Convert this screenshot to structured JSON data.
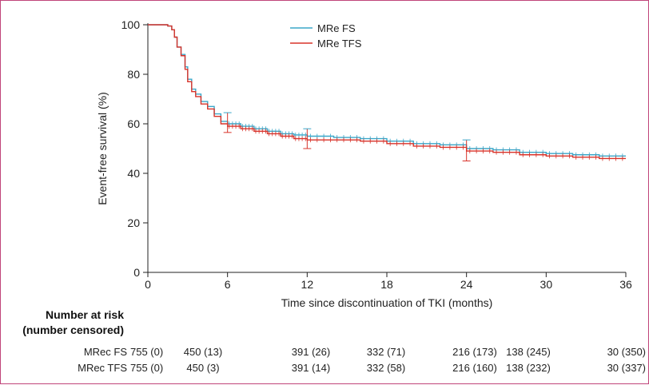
{
  "chart_data": {
    "type": "line",
    "title": "",
    "xlabel": "Time since discontinuation  of TKI (months)",
    "ylabel": "Event-free survival (%)",
    "xlim": [
      0,
      36
    ],
    "ylim": [
      0,
      100
    ],
    "x_ticks": [
      0,
      6,
      12,
      18,
      24,
      30,
      36
    ],
    "y_ticks": [
      0,
      20,
      40,
      60,
      80,
      100
    ],
    "grid": false,
    "legend_position": "top-center",
    "series": [
      {
        "name": "MRe FS",
        "color": "#3aa7c9",
        "x": [
          0,
          1.5,
          1.8,
          2.0,
          2.2,
          2.5,
          2.8,
          3.0,
          3.3,
          3.6,
          4.0,
          4.5,
          5.0,
          5.5,
          6.0,
          7.0,
          8.0,
          9.0,
          10.0,
          11.0,
          12.0,
          14.0,
          16.0,
          18.0,
          20.0,
          22.0,
          24.0,
          26.0,
          28.0,
          30.0,
          32.0,
          34.0,
          36.0
        ],
        "y": [
          100,
          99.5,
          98,
          95,
          91,
          88,
          83,
          78,
          74,
          72,
          69,
          67,
          64,
          61,
          60,
          59,
          58,
          57,
          56,
          55.5,
          55,
          54.5,
          54,
          53,
          52,
          51.5,
          50,
          49.5,
          48.5,
          48,
          47.5,
          47,
          47
        ]
      },
      {
        "name": "MRe TFS",
        "color": "#d8332a",
        "x": [
          0,
          1.5,
          1.8,
          2.0,
          2.2,
          2.5,
          2.8,
          3.0,
          3.3,
          3.6,
          4.0,
          4.5,
          5.0,
          5.5,
          6.0,
          7.0,
          8.0,
          9.0,
          10.0,
          11.0,
          12.0,
          14.0,
          16.0,
          18.0,
          20.0,
          22.0,
          24.0,
          26.0,
          28.0,
          30.0,
          32.0,
          34.0,
          36.0
        ],
        "y": [
          100,
          99.5,
          98,
          95,
          91,
          87.5,
          82,
          77,
          73,
          71,
          68,
          66,
          63,
          60,
          59,
          58,
          57,
          56,
          55,
          54,
          53.5,
          53.5,
          53,
          52,
          51,
          50.5,
          49,
          48.5,
          47.5,
          47,
          46.5,
          46,
          46
        ]
      }
    ],
    "error_bars": [
      {
        "x": 6,
        "low": 56.5,
        "high": 64.5
      },
      {
        "x": 12,
        "low": 50,
        "high": 58
      },
      {
        "x": 24,
        "low": 45,
        "high": 53.5
      }
    ]
  },
  "risk_table": {
    "header_line1": "Number at risk",
    "header_line2": "(number censored)",
    "rows": [
      {
        "label": "MRec FS",
        "values": [
          "755 (0)",
          "450 (13)",
          "391 (26)",
          "332 (71)",
          "216 (173)",
          "138 (245)",
          "30 (350)"
        ]
      },
      {
        "label": "MRec TFS",
        "values": [
          "755 (0)",
          "450 (3)",
          "391 (14)",
          "332 (58)",
          "216 (160)",
          "138 (232)",
          "30 (337)"
        ]
      }
    ]
  }
}
